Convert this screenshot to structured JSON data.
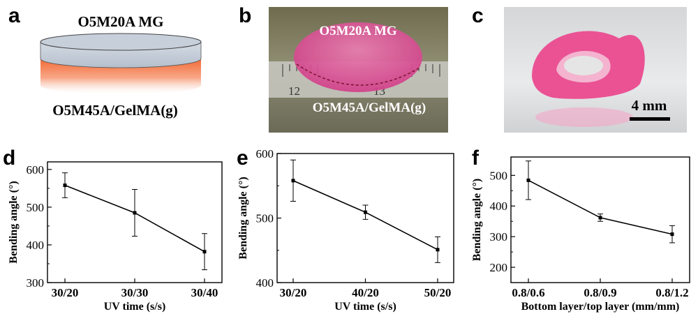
{
  "panels": {
    "a": {
      "letter": "a",
      "top_label": "O5M20A MG",
      "bottom_label": "O5M45A/GelMA(g)"
    },
    "b": {
      "letter": "b",
      "top_label": "O5M20A MG",
      "bottom_label": "O5M45A/GelMA(g)",
      "ruler_numbers": [
        "12",
        "13"
      ]
    },
    "c": {
      "letter": "c",
      "scale_label": "4 mm"
    },
    "d": {
      "letter": "d"
    },
    "e": {
      "letter": "e"
    },
    "f": {
      "letter": "f"
    }
  },
  "colors": {
    "disk_top": "#c5ced9",
    "disk_bottom": "#f46b3c",
    "gel_pink": "#e0488f",
    "line": "#000000"
  },
  "chart_data": [
    {
      "type": "line",
      "panel": "d",
      "categories": [
        "30/20",
        "30/30",
        "30/40"
      ],
      "values": [
        558,
        485,
        382
      ],
      "errors": [
        33,
        62,
        48
      ],
      "xlabel": "UV time (s/s)",
      "ylabel": "Bending angle (°)",
      "ylim": [
        300,
        620
      ],
      "yticks": [
        "300",
        "400",
        "500",
        "600"
      ],
      "yticks_values": [
        300,
        400,
        500,
        600
      ]
    },
    {
      "type": "line",
      "panel": "e",
      "categories": [
        "30/20",
        "40/20",
        "50/20"
      ],
      "values": [
        558,
        509,
        451
      ],
      "errors": [
        32,
        11,
        20
      ],
      "xlabel": "UV time (s/s)",
      "ylabel": "Bending angle (°)",
      "ylim": [
        400,
        600
      ],
      "yticks": [
        "400",
        "500",
        "600"
      ],
      "yticks_values": [
        400,
        500,
        600
      ]
    },
    {
      "type": "line",
      "panel": "f",
      "categories": [
        "0.8/0.6",
        "0.8/0.9",
        "0.8/1.2"
      ],
      "values": [
        484,
        362,
        308
      ],
      "errors": [
        63,
        12,
        28
      ],
      "xlabel": "Bottom layer/top layer (mm/mm)",
      "ylabel": "Bending angle (°)",
      "ylim": [
        150,
        560
      ],
      "yticks": [
        "200",
        "300",
        "400",
        "500"
      ],
      "yticks_values": [
        200,
        300,
        400,
        500
      ]
    }
  ]
}
